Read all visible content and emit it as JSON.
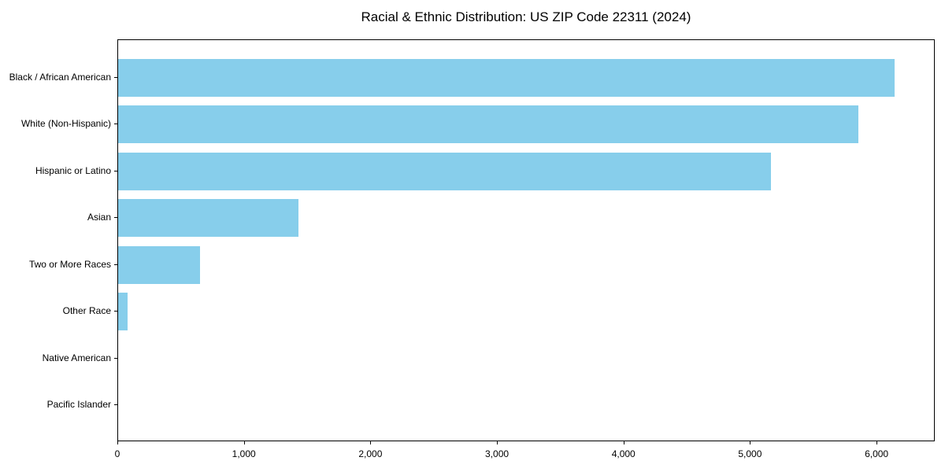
{
  "chart_data": {
    "type": "bar",
    "orientation": "horizontal",
    "title": "Racial & Ethnic Distribution: US ZIP Code 22311 (2024)",
    "categories": [
      "Black / African American",
      "White (Non-Hispanic)",
      "Hispanic or Latino",
      "Asian",
      "Two or More Races",
      "Other Race",
      "Native American",
      "Pacific Islander"
    ],
    "values": [
      6150,
      5860,
      5170,
      1430,
      650,
      75,
      0,
      0
    ],
    "xlabel": "",
    "ylabel": "",
    "xlim": [
      0,
      6460
    ],
    "x_ticks": [
      0,
      1000,
      2000,
      3000,
      4000,
      5000,
      6000
    ],
    "x_tick_labels": [
      "0",
      "1,000",
      "2,000",
      "3,000",
      "4,000",
      "5,000",
      "6,000"
    ],
    "bar_color": "#87CEEB",
    "background_color": "#ffffff",
    "spine_color": "#000000",
    "grid": false,
    "legend_position": "none"
  }
}
